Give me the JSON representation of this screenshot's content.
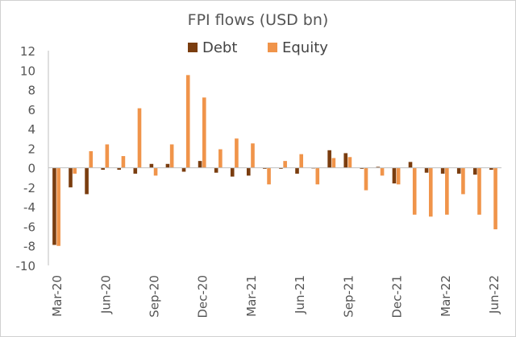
{
  "chart_data": {
    "type": "bar",
    "title": "FPI flows (USD bn)",
    "xlabel": "",
    "ylabel": "",
    "ylim": [
      -10,
      12
    ],
    "yticks": [
      12,
      10,
      8,
      6,
      4,
      2,
      0,
      -2,
      -4,
      -6,
      -8,
      -10
    ],
    "legend_position": "top-center",
    "categories": [
      "Mar-20",
      "Apr-20",
      "May-20",
      "Jun-20",
      "Jul-20",
      "Aug-20",
      "Sep-20",
      "Oct-20",
      "Nov-20",
      "Dec-20",
      "Jan-21",
      "Feb-21",
      "Mar-21",
      "Apr-21",
      "May-21",
      "Jun-21",
      "Jul-21",
      "Aug-21",
      "Sep-21",
      "Oct-21",
      "Nov-21",
      "Dec-21",
      "Jan-22",
      "Feb-22",
      "Mar-22",
      "Apr-22",
      "May-22",
      "Jun-22"
    ],
    "x_tick_labels": [
      "Mar-20",
      "Jun-20",
      "Sep-20",
      "Dec-20",
      "Mar-21",
      "Jun-21",
      "Sep-21",
      "Dec-21",
      "Mar-22",
      "Jun-22"
    ],
    "series": [
      {
        "name": "Debt",
        "color": "#7a3d0f",
        "values": [
          -7.9,
          -2.0,
          -2.7,
          -0.2,
          -0.2,
          -0.6,
          0.4,
          0.4,
          -0.4,
          0.7,
          -0.5,
          -0.9,
          -0.8,
          -0.1,
          -0.1,
          -0.6,
          0.0,
          1.8,
          1.5,
          -0.1,
          0.1,
          -1.6,
          0.6,
          -0.5,
          -0.6,
          -0.6,
          -0.7,
          -0.2
        ]
      },
      {
        "name": "Equity",
        "color": "#f0944a",
        "values": [
          -8.0,
          -0.6,
          1.7,
          2.4,
          1.2,
          6.1,
          -0.8,
          2.4,
          9.5,
          7.2,
          1.9,
          3.0,
          2.5,
          -1.7,
          0.7,
          1.4,
          -1.7,
          1.0,
          1.1,
          -2.3,
          -0.8,
          -1.7,
          -4.8,
          -5.0,
          -4.8,
          -2.7,
          -4.8,
          -6.3
        ]
      }
    ]
  }
}
